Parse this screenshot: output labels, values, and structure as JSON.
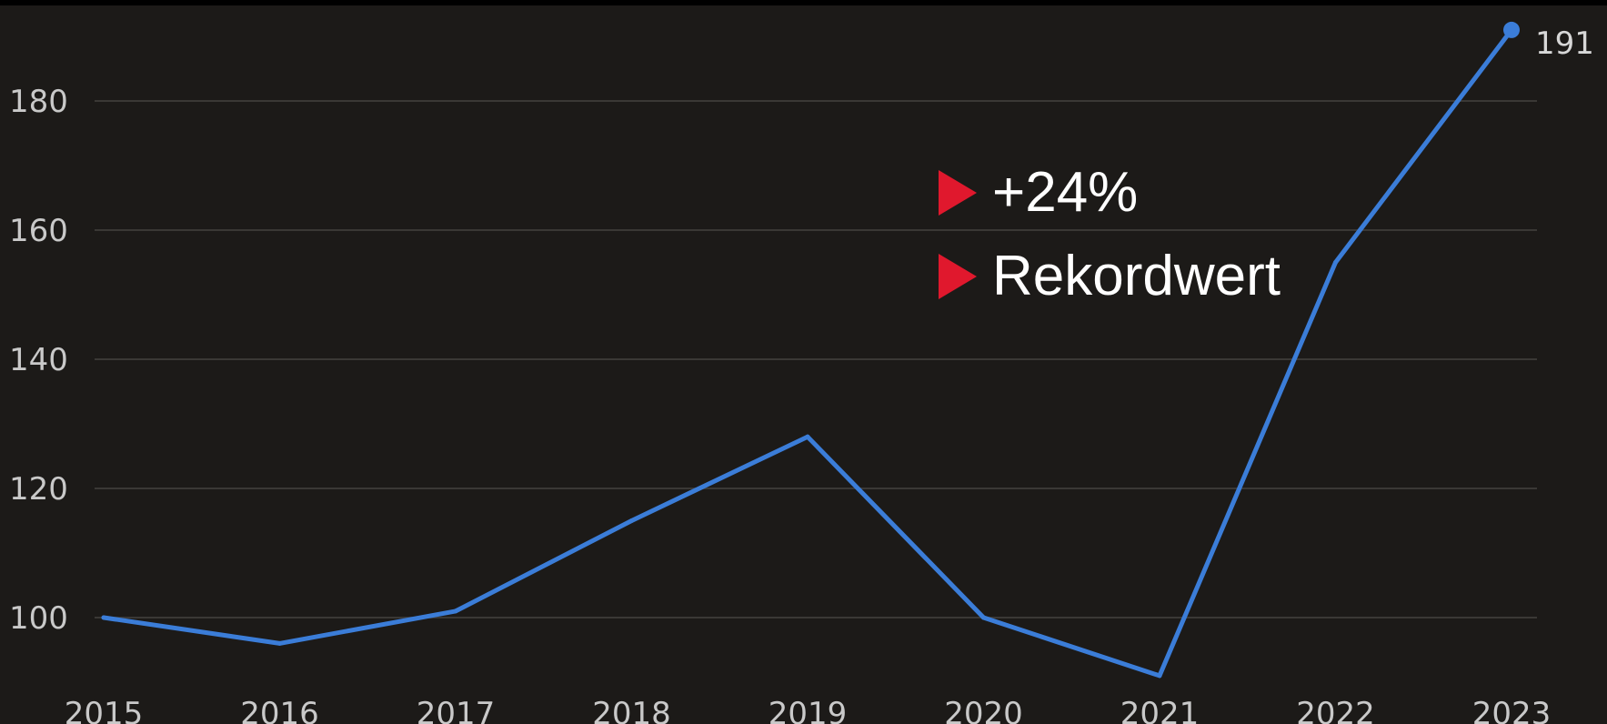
{
  "chart_data": {
    "type": "line",
    "x": [
      "2015",
      "2016",
      "2017",
      "2018",
      "2019",
      "2020",
      "2021",
      "2022",
      "2023"
    ],
    "series": [
      {
        "values": [
          100,
          96,
          101,
          115,
          128,
          100,
          91,
          155,
          191
        ]
      }
    ],
    "ylim": [
      91,
      192
    ],
    "yticks": [
      "100",
      "120",
      "140",
      "160",
      "180"
    ],
    "grid": true,
    "end_label": "191",
    "annotations": [
      "+24%",
      "Rekordwert"
    ],
    "title": "",
    "xlabel": "",
    "ylabel": ""
  },
  "colors": {
    "background": "#1c1a18",
    "line": "#3b7dd8",
    "grid": "#3a3835",
    "marker": "#e0182d",
    "text": "#ffffff"
  }
}
